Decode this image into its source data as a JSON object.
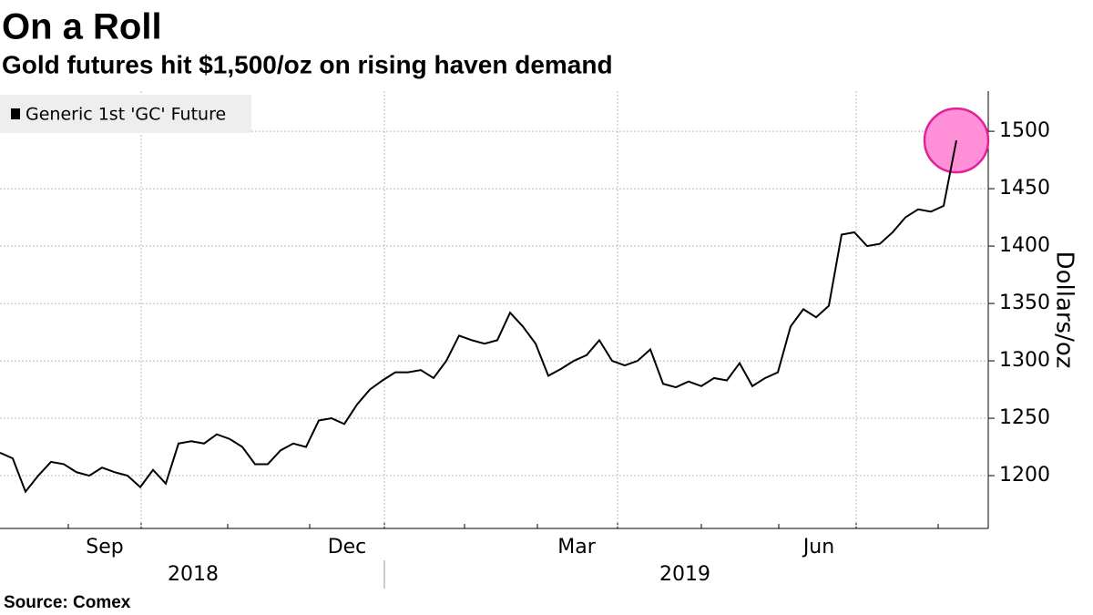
{
  "chart_data": {
    "type": "line",
    "title": "On a Roll",
    "subtitle": "Gold futures hit $1,500/oz on rising haven demand",
    "y_label": "Dollars/oz",
    "source": "Source: Comex",
    "years": [
      "2018",
      "2019"
    ],
    "categories": [
      null,
      null,
      null,
      null,
      null,
      null,
      null,
      null,
      "Sep",
      null,
      null,
      null,
      null,
      null,
      null,
      null,
      null,
      null,
      null,
      null,
      null,
      null,
      null,
      null,
      null,
      null,
      null,
      "Dec",
      null,
      null,
      null,
      null,
      null,
      null,
      null,
      null,
      null,
      null,
      null,
      null,
      null,
      null,
      null,
      null,
      null,
      "Mar",
      null,
      null,
      null,
      null,
      null,
      null,
      null,
      null,
      null,
      null,
      null,
      null,
      null,
      null,
      null,
      null,
      null,
      null,
      "Jun",
      null,
      null,
      null,
      null,
      null,
      null,
      null,
      null,
      null,
      null,
      null
    ],
    "series": [
      {
        "name": "Generic 1st 'GC' Future",
        "color": "#000000",
        "values": [
          1220,
          1215,
          1186,
          1200,
          1212,
          1210,
          1203,
          1200,
          1207,
          1203,
          1200,
          1190,
          1205,
          1193,
          1228,
          1230,
          1228,
          1236,
          1232,
          1225,
          1210,
          1210,
          1222,
          1228,
          1225,
          1248,
          1250,
          1245,
          1262,
          1275,
          1283,
          1290,
          1290,
          1292,
          1285,
          1300,
          1322,
          1318,
          1315,
          1318,
          1342,
          1330,
          1315,
          1287,
          1293,
          1300,
          1305,
          1318,
          1300,
          1296,
          1300,
          1310,
          1280,
          1277,
          1282,
          1278,
          1285,
          1283,
          1298,
          1278,
          1285,
          1290,
          1330,
          1345,
          1338,
          1348,
          1410,
          1412,
          1400,
          1402,
          1412,
          1425,
          1432,
          1430,
          1435,
          1492
        ]
      }
    ],
    "highlight_color": "#ff8fd6",
    "ylim": [
      1154,
      1535
    ],
    "yticks": [
      1200,
      1250,
      1300,
      1350,
      1400,
      1450,
      1500
    ],
    "grid": true
  }
}
